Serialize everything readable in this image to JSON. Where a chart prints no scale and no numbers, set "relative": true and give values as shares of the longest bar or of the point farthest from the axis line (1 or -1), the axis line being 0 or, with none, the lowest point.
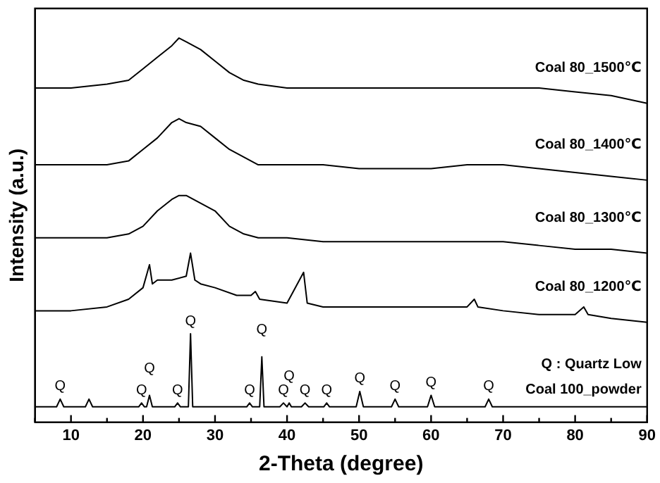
{
  "chart_data": {
    "type": "line",
    "relative": true,
    "xlabel": "2-Theta (degree)",
    "ylabel": "Intensity (a.u.)",
    "xlim": [
      5,
      90
    ],
    "xticks": [
      {
        "value": 5,
        "label": null
      },
      10,
      {
        "value": 15,
        "label": null
      },
      20,
      {
        "value": 25,
        "label": null
      },
      30,
      {
        "value": 35,
        "label": null
      },
      40,
      {
        "value": 45,
        "label": null
      },
      50,
      {
        "value": 55,
        "label": null
      },
      60,
      {
        "value": 65,
        "label": null
      },
      70,
      {
        "value": 75,
        "label": null
      },
      80,
      {
        "value": 85,
        "label": null
      },
      90
    ],
    "grid": false,
    "legend": false,
    "marker": "none",
    "line_style": "solid",
    "x": [
      5,
      10,
      15,
      18,
      20,
      22,
      24,
      25,
      26,
      28,
      30,
      32,
      34,
      36,
      40,
      45,
      50,
      55,
      60,
      65,
      70,
      75,
      80,
      85,
      90
    ],
    "series": [
      {
        "name": "Coal 80_1500℃",
        "color": "#000000",
        "values": [
          0.87,
          0.87,
          0.88,
          0.89,
          0.92,
          0.95,
          0.98,
          1.0,
          0.99,
          0.97,
          0.94,
          0.91,
          0.89,
          0.88,
          0.87,
          0.87,
          0.87,
          0.87,
          0.87,
          0.87,
          0.87,
          0.87,
          0.86,
          0.85,
          0.83
        ]
      },
      {
        "name": "Coal 80_1400℃",
        "color": "#000000",
        "values": [
          0.67,
          0.67,
          0.67,
          0.68,
          0.71,
          0.74,
          0.78,
          0.79,
          0.78,
          0.77,
          0.74,
          0.71,
          0.69,
          0.67,
          0.67,
          0.67,
          0.66,
          0.66,
          0.66,
          0.67,
          0.67,
          0.66,
          0.65,
          0.64,
          0.63
        ]
      },
      {
        "name": "Coal 80_1300℃",
        "color": "#000000",
        "values": [
          0.48,
          0.48,
          0.48,
          0.49,
          0.51,
          0.55,
          0.58,
          0.59,
          0.59,
          0.57,
          0.55,
          0.51,
          0.49,
          0.48,
          0.48,
          0.47,
          0.47,
          0.47,
          0.47,
          0.47,
          0.47,
          0.46,
          0.45,
          0.45,
          0.44
        ]
      },
      {
        "name": "Coal 80_1200℃",
        "color": "#000000",
        "x": [
          5,
          10,
          15,
          18,
          20,
          20.9,
          21.3,
          22,
          24,
          26,
          26.6,
          27.2,
          28,
          30,
          33,
          35,
          35.6,
          36.2,
          40,
          42.3,
          42.8,
          45,
          50,
          55,
          60,
          65,
          66,
          66.5,
          70,
          75,
          80,
          81.2,
          81.8,
          85,
          90
        ],
        "values": [
          0.29,
          0.29,
          0.3,
          0.32,
          0.35,
          0.41,
          0.36,
          0.37,
          0.37,
          0.38,
          0.44,
          0.37,
          0.36,
          0.35,
          0.33,
          0.33,
          0.34,
          0.32,
          0.31,
          0.39,
          0.31,
          0.3,
          0.3,
          0.3,
          0.3,
          0.3,
          0.32,
          0.3,
          0.29,
          0.28,
          0.28,
          0.3,
          0.28,
          0.27,
          0.26
        ]
      },
      {
        "name": "Coal 100_powder",
        "color": "#000000",
        "x": [
          5,
          8,
          8.5,
          9,
          12,
          12.5,
          13,
          19.4,
          19.8,
          20.2,
          20.5,
          20.9,
          21.3,
          24.4,
          24.8,
          25.2,
          26.3,
          26.6,
          26.9,
          34.4,
          34.8,
          35.2,
          36.2,
          36.5,
          36.8,
          39,
          39.5,
          40,
          40.3,
          40.6,
          42,
          42.5,
          43,
          45.1,
          45.5,
          45.9,
          49.6,
          50.1,
          50.6,
          54.5,
          55,
          55.5,
          59.5,
          60,
          60.5,
          67.5,
          68,
          68.5,
          75,
          80,
          90
        ],
        "values": [
          0.04,
          0.04,
          0.06,
          0.04,
          0.04,
          0.06,
          0.04,
          0.04,
          0.05,
          0.04,
          0.04,
          0.07,
          0.04,
          0.04,
          0.05,
          0.04,
          0.04,
          0.23,
          0.04,
          0.04,
          0.05,
          0.04,
          0.04,
          0.17,
          0.04,
          0.04,
          0.05,
          0.04,
          0.05,
          0.04,
          0.04,
          0.05,
          0.04,
          0.04,
          0.05,
          0.04,
          0.04,
          0.08,
          0.04,
          0.04,
          0.06,
          0.04,
          0.04,
          0.07,
          0.04,
          0.04,
          0.06,
          0.04,
          0.04,
          0.04,
          0.04
        ]
      }
    ],
    "annotations": [
      "Q : Quartz Low",
      {
        "text": "Q",
        "x": 8.5,
        "y": 0.06
      },
      {
        "text": "Q",
        "x": 19.8,
        "y": 0.05
      },
      {
        "text": "Q",
        "x": 20.9,
        "y": 0.07
      },
      {
        "text": "Q",
        "x": 24.8,
        "y": 0.05
      },
      {
        "text": "Q",
        "x": 26.6,
        "y": 0.23
      },
      {
        "text": "Q",
        "x": 34.8,
        "y": 0.05
      },
      {
        "text": "Q",
        "x": 36.5,
        "y": 0.17
      },
      {
        "text": "Q",
        "x": 39.5,
        "y": 0.05
      },
      {
        "text": "Q",
        "x": 40.3,
        "y": 0.05
      },
      {
        "text": "Q",
        "x": 42.5,
        "y": 0.05
      },
      {
        "text": "Q",
        "x": 45.5,
        "y": 0.05
      },
      {
        "text": "Q",
        "x": 50.1,
        "y": 0.08
      },
      {
        "text": "Q",
        "x": 55,
        "y": 0.06
      },
      {
        "text": "Q",
        "x": 60,
        "y": 0.07
      },
      {
        "text": "Q",
        "x": 68,
        "y": 0.06
      }
    ]
  }
}
